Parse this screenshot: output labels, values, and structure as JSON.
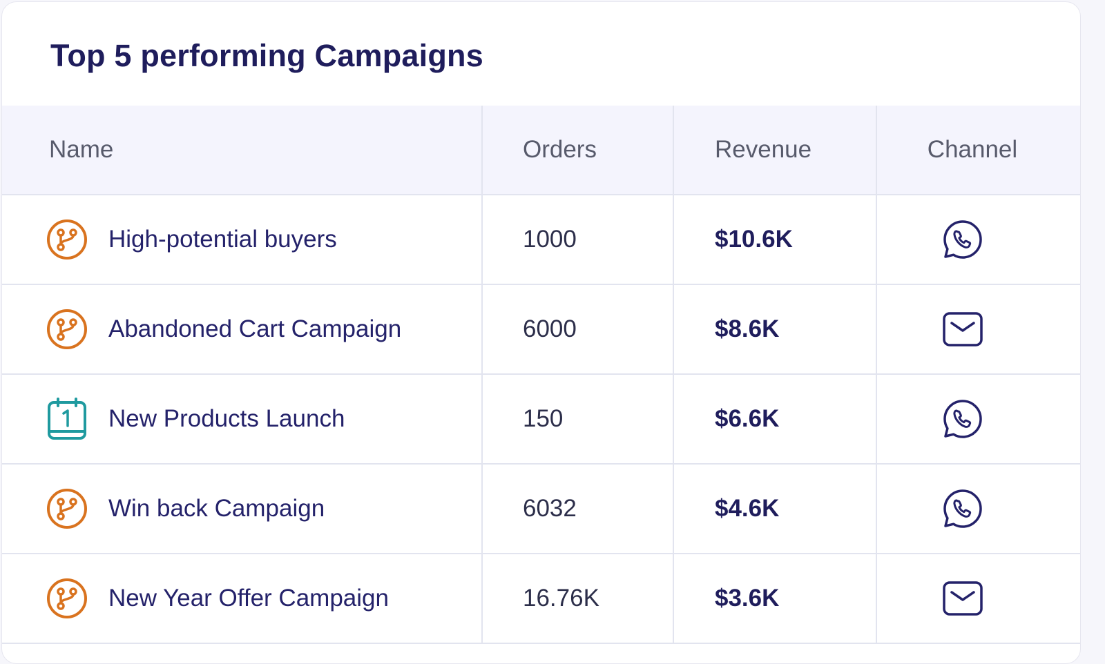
{
  "card": {
    "title": "Top 5 performing Campaigns"
  },
  "table": {
    "columns": {
      "name": "Name",
      "orders": "Orders",
      "revenue": "Revenue",
      "channel": "Channel"
    },
    "rows": [
      {
        "type_icon": "flow-branch-icon",
        "name": "High-potential buyers",
        "orders": "1000",
        "revenue": "$10.6K",
        "channel_icon": "whatsapp-icon"
      },
      {
        "type_icon": "flow-branch-icon",
        "name": "Abandoned Cart Campaign",
        "orders": "6000",
        "revenue": "$8.6K",
        "channel_icon": "email-icon"
      },
      {
        "type_icon": "calendar-one-icon",
        "name": "New Products Launch",
        "orders": "150",
        "revenue": "$6.6K",
        "channel_icon": "whatsapp-icon"
      },
      {
        "type_icon": "flow-branch-icon",
        "name": "Win back Campaign",
        "orders": "6032",
        "revenue": "$4.6K",
        "channel_icon": "whatsapp-icon"
      },
      {
        "type_icon": "flow-branch-icon",
        "name": "New Year Offer Campaign",
        "orders": "16.76K",
        "revenue": "$3.6K",
        "channel_icon": "email-icon"
      }
    ]
  },
  "colors": {
    "title": "#1f1d5c",
    "header_bg": "#f4f4fd",
    "flow_icon": "#d9731f",
    "calendar_icon": "#1f9a9f",
    "channel_icon": "#24226a",
    "grid_line": "#e2e4ef"
  }
}
